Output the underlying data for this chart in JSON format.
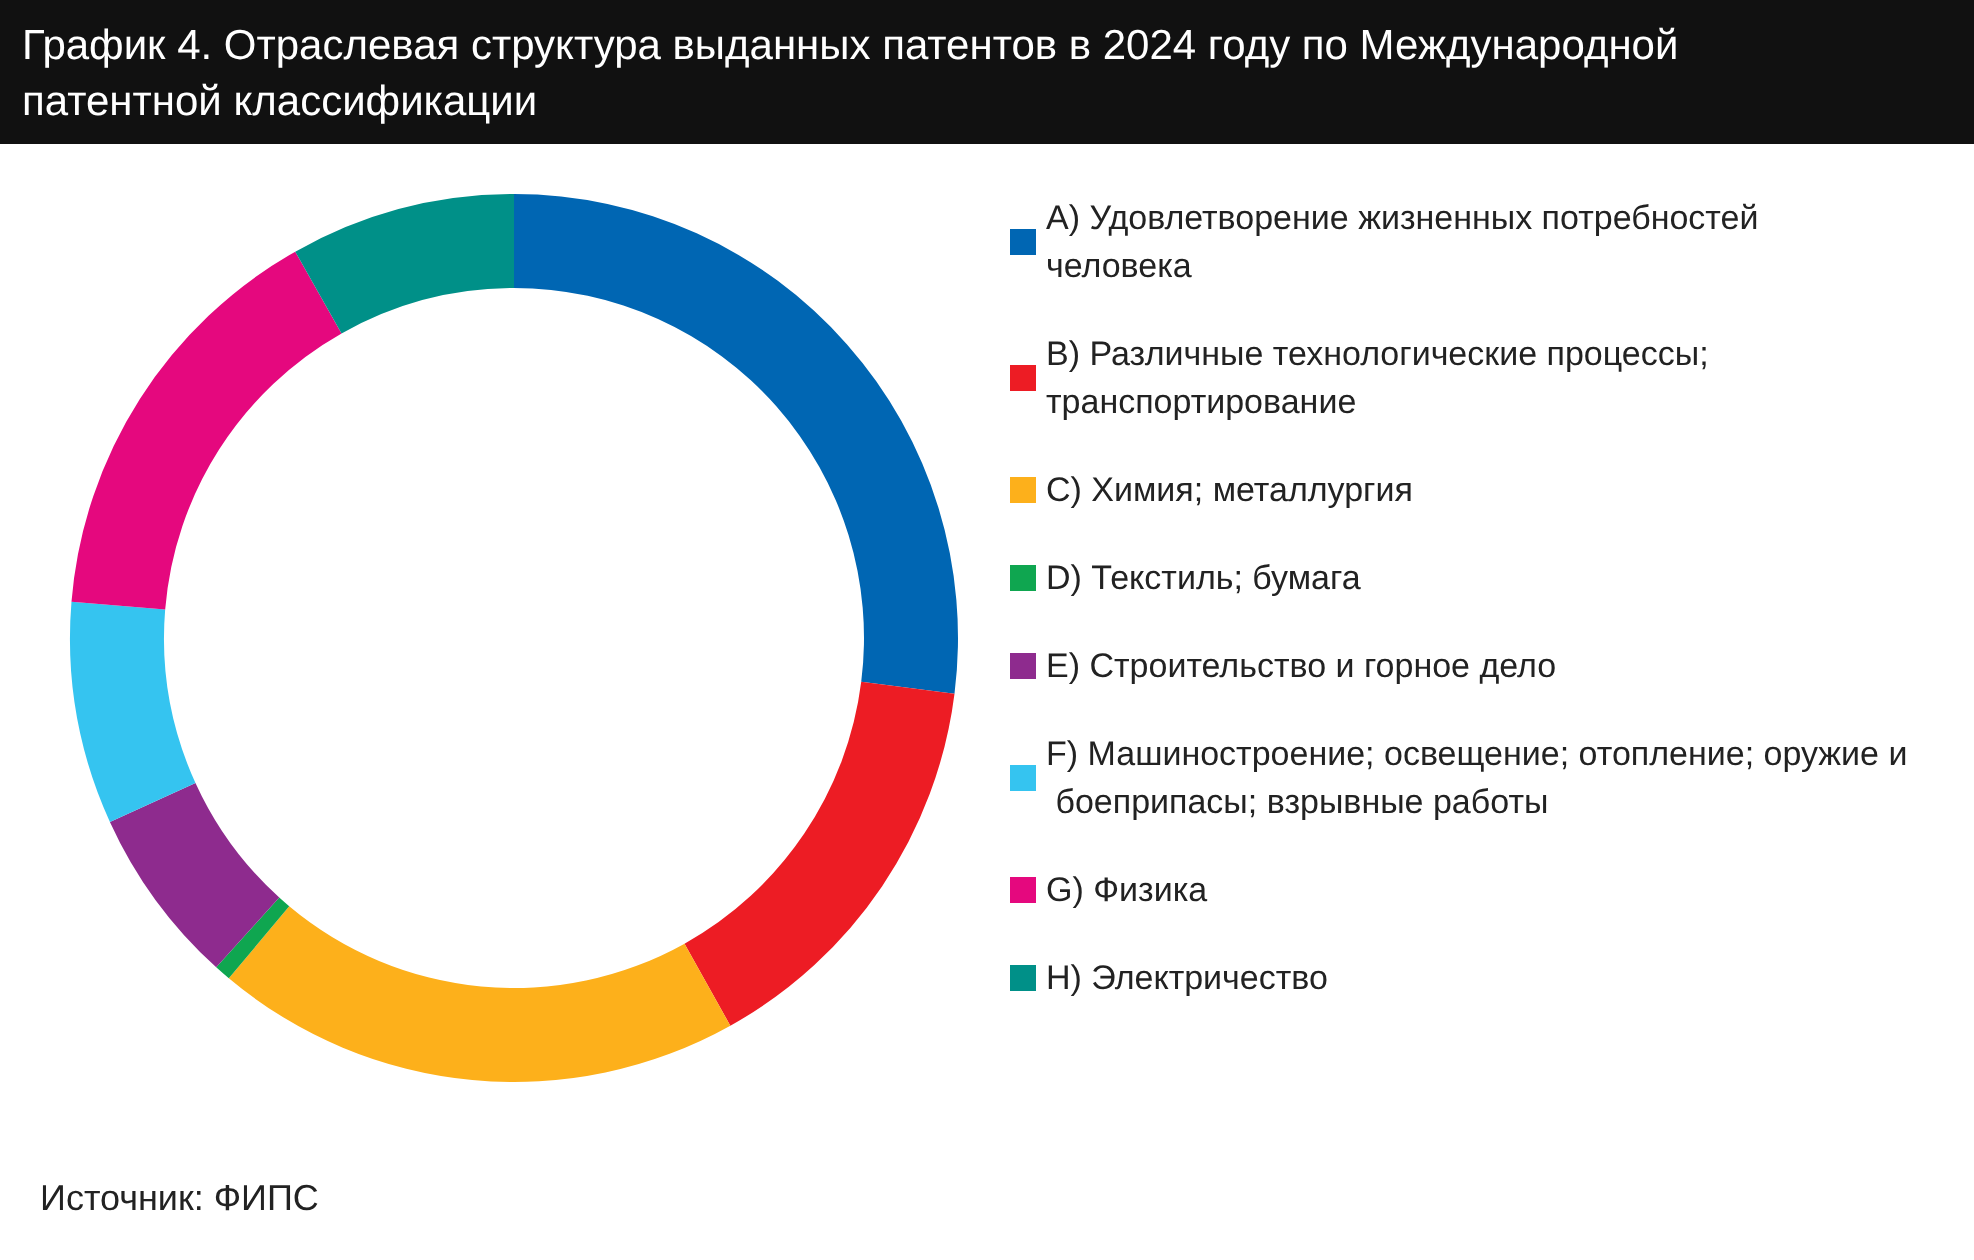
{
  "chart_data": {
    "type": "donut",
    "title": "График 4. Отраслевая структура выданных патентов в 2024 году по Международной патентной классификации",
    "categories": [
      "A) Удовлетворение жизненных потребностей человека",
      "B) Различные технологические процессы; транспортирование",
      "C) Химия; металлургия",
      "D) Текстиль; бумага",
      "E) Строительство и горное дело",
      "F) Машиностроение; освещение; отопление; оружие и боеприпасы; взрывные работы",
      "G) Физика",
      "H) Электричество"
    ],
    "values": [
      27.0,
      14.9,
      19.2,
      0.6,
      6.5,
      8.1,
      15.5,
      8.2
    ],
    "colors": [
      "#0066b3",
      "#ed1c24",
      "#fdb01b",
      "#0fa650",
      "#8e2b8e",
      "#35c4f0",
      "#e5087e",
      "#009088"
    ],
    "legend": "right",
    "annotations": [
      "Источник: ФИПС"
    ]
  }
}
